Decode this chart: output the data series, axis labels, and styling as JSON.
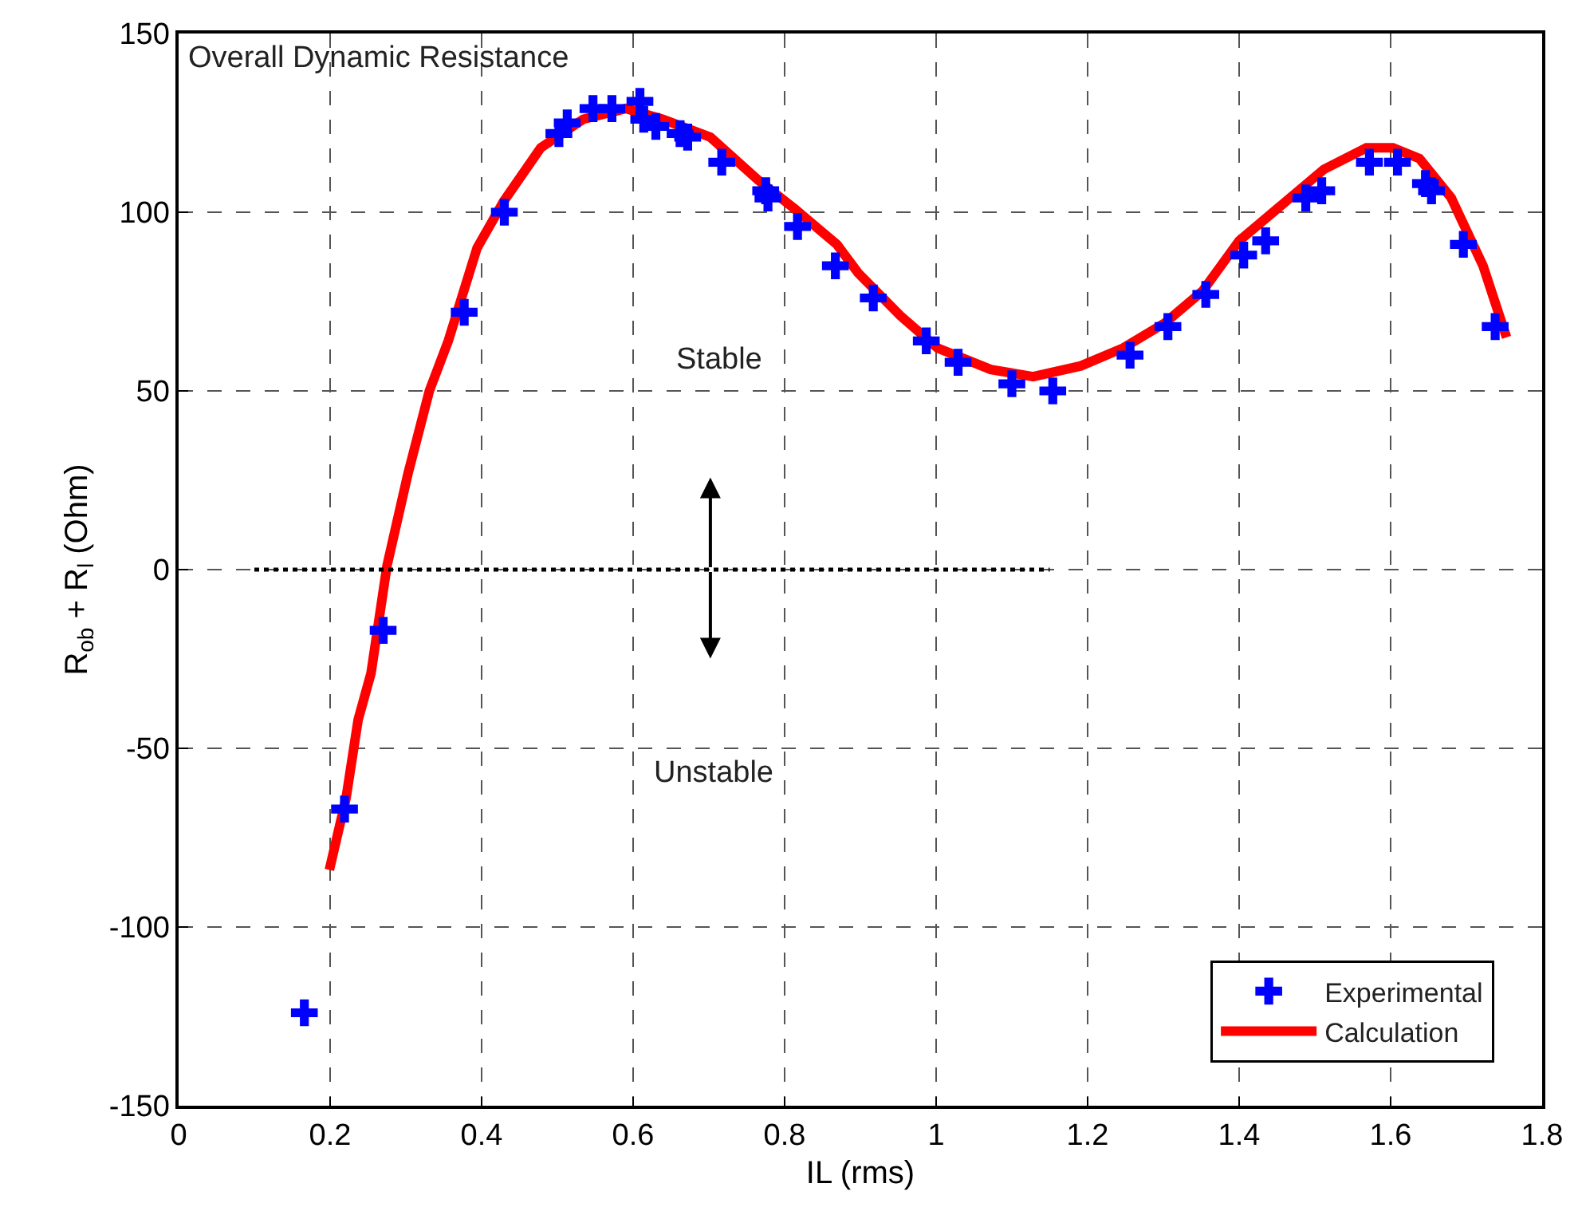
{
  "chart_data": {
    "type": "scatter",
    "title": "Overall Dynamic Resistance",
    "xlabel": "IL (rms)",
    "ylabel": "R$_{ob}$ + R$_{l}$ (Ohm)",
    "xlim": [
      0,
      1.8
    ],
    "xticks": [
      0,
      0.2,
      0.4,
      0.6,
      0.8,
      1,
      1.2,
      1.4,
      1.6,
      1.8
    ],
    "ylim": [
      -150,
      150
    ],
    "yticks": [
      -150,
      -100,
      -50,
      0,
      50,
      100,
      150
    ],
    "grid": true,
    "legend": "bottom right",
    "annotations": [
      "Stable",
      "Unstable"
    ],
    "series": [
      {
        "name": "Calculation",
        "type": "line",
        "color": "#ff0000",
        "marker": "none",
        "line_style": "solid",
        "x": [
          0.199,
          0.221,
          0.237,
          0.254,
          0.275,
          0.303,
          0.331,
          0.356,
          0.394,
          0.429,
          0.478,
          0.534,
          0.59,
          0.639,
          0.702,
          0.765,
          0.813,
          0.869,
          0.897,
          0.953,
          1.002,
          1.072,
          1.128,
          1.191,
          1.247,
          1.302,
          1.352,
          1.4,
          1.456,
          1.512,
          1.568,
          1.603,
          1.638,
          1.68,
          1.722,
          1.753
        ],
        "values": [
          -84,
          -64,
          -42,
          -29,
          1,
          27,
          50,
          64,
          90,
          103,
          118,
          126,
          129,
          126,
          121,
          109,
          101,
          91,
          83,
          71,
          62,
          56,
          54,
          57,
          62,
          69,
          78,
          92,
          102,
          112,
          118,
          118,
          115,
          104,
          85,
          65
        ]
      },
      {
        "name": "Experimental",
        "color": "#0000ff",
        "marker": "cross",
        "x": [
          0.166,
          0.219,
          0.27,
          0.377,
          0.43,
          0.502,
          0.513,
          0.547,
          0.572,
          0.609,
          0.614,
          0.63,
          0.662,
          0.672,
          0.717,
          0.775,
          0.778,
          0.817,
          0.867,
          0.917,
          0.987,
          1.029,
          1.1,
          1.154,
          1.256,
          1.306,
          1.356,
          1.406,
          1.435,
          1.488,
          1.509,
          1.572,
          1.609,
          1.646,
          1.654,
          1.696,
          1.738
        ],
        "values": [
          -124,
          -67,
          -17,
          72,
          100,
          122,
          125,
          129,
          129,
          131,
          126,
          124,
          122,
          121,
          114,
          106,
          104,
          96,
          85,
          76,
          64,
          58,
          52,
          50,
          60,
          68,
          77,
          88,
          92,
          104,
          106,
          114,
          114,
          108,
          106,
          91,
          68
        ]
      },
      {
        "type": "line",
        "color": "#000000",
        "marker": "none",
        "line_style": "dotted",
        "x": [
          0.1,
          1.15
        ],
        "values": [
          0,
          0
        ]
      }
    ]
  }
}
